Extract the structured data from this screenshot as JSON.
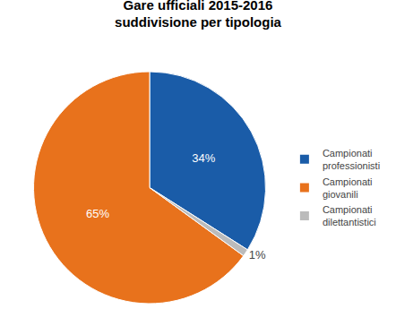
{
  "chart_data": {
    "type": "pie",
    "title": "Gare ufficiali 2015-2016\nsuddivisione per tipologia",
    "categories": [
      "Campionati\nprofessionisti",
      "Campionati\ngiovanili",
      "Campionati\ndilettantistici"
    ],
    "values": [
      34,
      65,
      1
    ],
    "value_labels": [
      "34%",
      "65%",
      "1%"
    ],
    "colors": [
      "#1A5CA8",
      "#E8721C",
      "#BBBBBB"
    ],
    "data_labels": true,
    "legend": "right"
  }
}
